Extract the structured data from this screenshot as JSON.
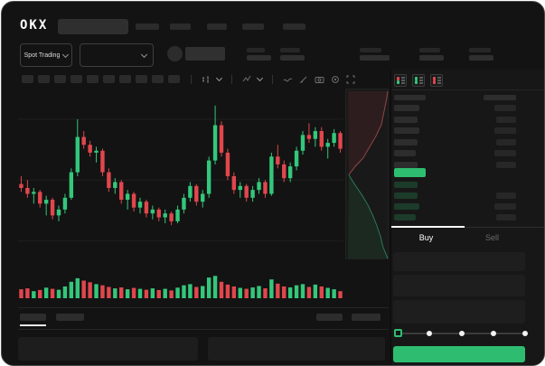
{
  "colors": {
    "accent_green": "#2ebd70",
    "candle_up": "#34c77b",
    "candle_down": "#e0474d",
    "depth_ask_line": "#c05a55",
    "depth_bid_line": "#2f9e6c",
    "tab_active_text": "#ffffff",
    "tab_inactive_text": "#6b6b6b",
    "grid_line": "#1f1f1f"
  },
  "topnav": {
    "logo_text": "OKX",
    "search_placeholder": "",
    "item_lefts": [
      148,
      186,
      227,
      266,
      311
    ],
    "item_widths": [
      26,
      23,
      22,
      24,
      25
    ]
  },
  "header_row": {
    "market_selector_label": "Spot Trading",
    "stat_lefts": [
      271,
      308,
      396,
      462,
      517
    ],
    "stat_pairs": [
      {
        "label_w": 20,
        "value_w": 27
      },
      {
        "label_w": 22,
        "value_w": 27
      },
      {
        "label_w": 24,
        "value_w": 33
      },
      {
        "label_w": 23,
        "value_w": 27
      },
      {
        "label_w": 24,
        "value_w": 27
      }
    ]
  },
  "toolbar": {
    "timeframe_count": 10,
    "icon_names": [
      "chart-type-icon",
      "chevron-down-icon",
      "indicators-icon",
      "chevron-down-icon",
      "line-tool-icon",
      "draw-icon",
      "camera-icon",
      "settings-icon",
      "fullscreen-icon"
    ]
  },
  "orderbook": {
    "toggle_icons": [
      "book-combined-icon",
      "book-bids-icon",
      "book-asks-icon"
    ],
    "header": {
      "price_w": 35,
      "amount_w": 36
    },
    "asks": [
      {
        "pw": 28,
        "aw": 24
      },
      {
        "pw": 26,
        "aw": 22
      },
      {
        "pw": 28,
        "aw": 24
      },
      {
        "pw": 26,
        "aw": 22
      },
      {
        "pw": 24,
        "aw": 24
      },
      {
        "pw": 26,
        "aw": 22
      }
    ],
    "last_price": {
      "w": 35
    },
    "bids": [
      {
        "pw": 26,
        "aw": 0
      },
      {
        "pw": 26,
        "aw": 22
      },
      {
        "pw": 28,
        "aw": 24
      },
      {
        "pw": 24,
        "aw": 22
      }
    ]
  },
  "trade_panel": {
    "tabs": {
      "buy_label": "Buy",
      "sell_label": "Sell"
    },
    "slider": {
      "value_pct": 0,
      "stops": [
        0,
        25,
        50,
        75,
        100
      ]
    }
  },
  "bottom": {
    "tab_lefts": [
      20,
      60
    ],
    "tab_widths": [
      29,
      31
    ],
    "right_tab_lefts": [
      348,
      387
    ],
    "right_tab_widths": [
      29,
      32
    ],
    "active_tab_index": 0
  },
  "chart_data": [
    {
      "type": "candlestick",
      "title": "",
      "xlabel": "",
      "ylabel": "",
      "ylim": [
        30,
        105
      ],
      "grid_prices": [
        93,
        62,
        31
      ],
      "ohlc": [
        [
          60,
          64,
          56,
          58
        ],
        [
          58,
          62,
          53,
          55
        ],
        [
          55,
          58,
          50,
          56
        ],
        [
          56,
          57,
          48,
          50
        ],
        [
          50,
          54,
          44,
          52
        ],
        [
          52,
          53,
          42,
          44
        ],
        [
          44,
          49,
          41,
          47
        ],
        [
          47,
          55,
          45,
          53
        ],
        [
          53,
          68,
          52,
          66
        ],
        [
          66,
          93,
          64,
          84
        ],
        [
          84,
          87,
          78,
          80
        ],
        [
          80,
          82,
          74,
          76
        ],
        [
          76,
          79,
          71,
          77
        ],
        [
          77,
          78,
          64,
          66
        ],
        [
          66,
          68,
          56,
          58
        ],
        [
          58,
          63,
          55,
          61
        ],
        [
          61,
          62,
          50,
          52
        ],
        [
          52,
          57,
          47,
          55
        ],
        [
          55,
          56,
          46,
          48
        ],
        [
          48,
          53,
          45,
          51
        ],
        [
          51,
          52,
          43,
          45
        ],
        [
          45,
          49,
          42,
          47
        ],
        [
          47,
          48,
          41,
          43
        ],
        [
          43,
          47,
          40,
          45
        ],
        [
          45,
          46,
          39,
          41
        ],
        [
          41,
          49,
          40,
          47
        ],
        [
          47,
          55,
          45,
          53
        ],
        [
          53,
          61,
          51,
          59
        ],
        [
          59,
          60,
          49,
          51
        ],
        [
          51,
          57,
          48,
          55
        ],
        [
          55,
          74,
          53,
          72
        ],
        [
          72,
          100,
          70,
          90
        ],
        [
          90,
          92,
          74,
          76
        ],
        [
          76,
          78,
          62,
          64
        ],
        [
          64,
          66,
          55,
          57
        ],
        [
          57,
          61,
          53,
          59
        ],
        [
          59,
          60,
          51,
          53
        ],
        [
          53,
          59,
          51,
          57
        ],
        [
          57,
          63,
          55,
          61
        ],
        [
          61,
          62,
          53,
          55
        ],
        [
          55,
          76,
          54,
          74
        ],
        [
          74,
          80,
          68,
          70
        ],
        [
          70,
          72,
          61,
          63
        ],
        [
          63,
          71,
          61,
          69
        ],
        [
          69,
          79,
          67,
          77
        ],
        [
          77,
          87,
          75,
          85
        ],
        [
          85,
          91,
          81,
          83
        ],
        [
          83,
          89,
          79,
          87
        ],
        [
          87,
          89,
          77,
          79
        ],
        [
          79,
          83,
          73,
          81
        ],
        [
          81,
          88,
          79,
          86
        ],
        [
          86,
          87,
          76,
          78
        ]
      ]
    },
    {
      "type": "bar",
      "name": "volume",
      "ylim": [
        0,
        100
      ],
      "values": [
        38,
        42,
        30,
        35,
        45,
        40,
        36,
        50,
        70,
        85,
        75,
        68,
        60,
        55,
        48,
        42,
        46,
        38,
        44,
        40,
        36,
        42,
        35,
        40,
        33,
        45,
        55,
        60,
        48,
        52,
        88,
        95,
        70,
        58,
        50,
        44,
        40,
        46,
        52,
        42,
        80,
        62,
        50,
        46,
        55,
        60,
        48,
        58,
        50,
        44,
        38,
        30
      ]
    },
    {
      "type": "area",
      "name": "market-depth",
      "orientation": "vertical",
      "asks": [
        [
          1.0,
          0.0
        ],
        [
          0.96,
          0.06
        ],
        [
          0.9,
          0.13
        ],
        [
          0.84,
          0.2
        ],
        [
          0.7,
          0.27
        ],
        [
          0.55,
          0.33
        ],
        [
          0.38,
          0.4
        ],
        [
          0.18,
          0.45
        ],
        [
          0.02,
          0.5
        ]
      ],
      "bids": [
        [
          0.02,
          0.5
        ],
        [
          0.15,
          0.55
        ],
        [
          0.35,
          0.62
        ],
        [
          0.5,
          0.68
        ],
        [
          0.62,
          0.74
        ],
        [
          0.72,
          0.8
        ],
        [
          0.82,
          0.87
        ],
        [
          0.88,
          0.93
        ],
        [
          1.0,
          1.0
        ]
      ]
    }
  ]
}
